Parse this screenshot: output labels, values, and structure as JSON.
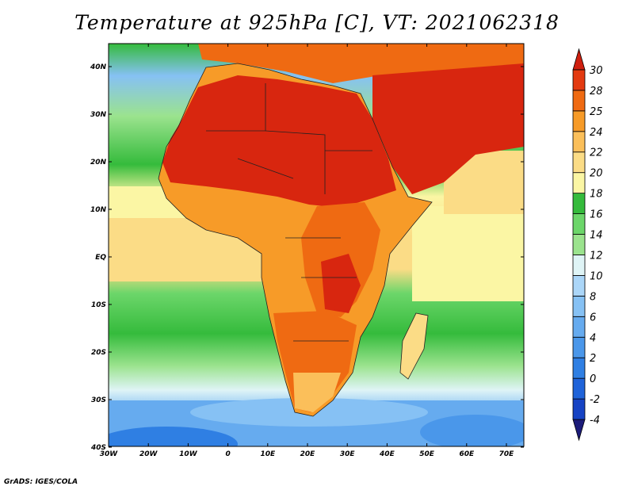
{
  "title": "Temperature at 925hPa [C], VT: 2021062318",
  "credit": "GrADS: IGES/COLA",
  "axes": {
    "lat_labels": [
      "40N",
      "30N",
      "20N",
      "10N",
      "EQ",
      "10S",
      "20S",
      "30S",
      "40S"
    ],
    "lon_labels": [
      "30W",
      "20W",
      "10W",
      "0",
      "10E",
      "20E",
      "30E",
      "40E",
      "50E",
      "60E",
      "70E"
    ]
  },
  "colorbar": {
    "levels": [
      "-4",
      "-2",
      "0",
      "2",
      "4",
      "6",
      "8",
      "10",
      "12",
      "14",
      "16",
      "18",
      "20",
      "22",
      "24",
      "25",
      "28",
      "30"
    ],
    "colors": [
      "#1c1c7a",
      "#1643c4",
      "#1f63d9",
      "#2f7fe3",
      "#4a97ea",
      "#66abef",
      "#86c1f4",
      "#abd6f8",
      "#dff4f6",
      "#9be38e",
      "#6cd66a",
      "#35bb3c",
      "#fbf6a4",
      "#fbdc86",
      "#fbbf5a",
      "#f79b28",
      "#ef6a12",
      "#e33a10",
      "#cf1f0f"
    ]
  },
  "colors": {
    "land_hot": "#d8260f",
    "land_warm": "#ef6a12",
    "ocean_equator": "#fbdc86",
    "ocean_south": "#35bb3c",
    "ocean_cold": "#66abef"
  }
}
